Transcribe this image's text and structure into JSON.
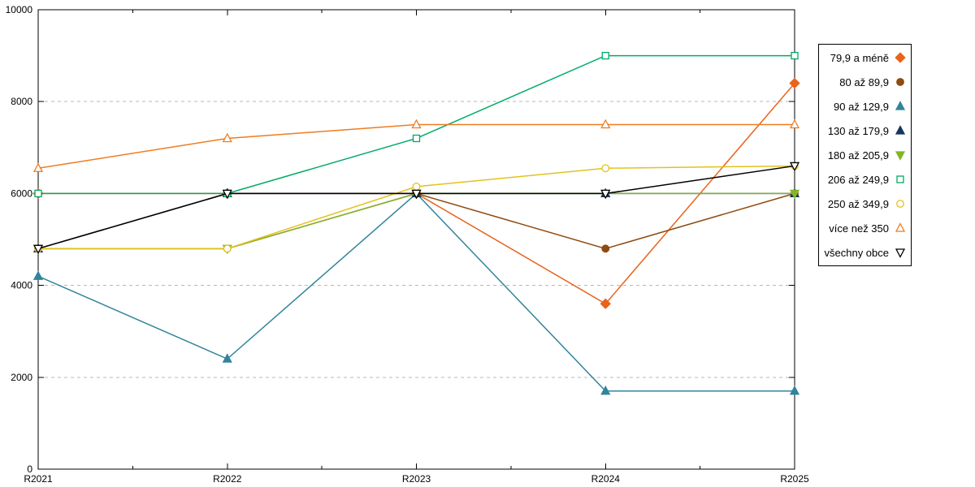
{
  "chart_data": {
    "type": "line",
    "title": "",
    "xlabel": "",
    "ylabel": "",
    "x_categories": [
      "R2021",
      "R2022",
      "R2023",
      "R2024",
      "R2025"
    ],
    "y_ticks": [
      0,
      2000,
      4000,
      6000,
      8000,
      10000
    ],
    "ylim": [
      0,
      10000
    ],
    "grid": "horizontal-dashed",
    "grid_color": "#b8b8b8",
    "border_color": "#000000",
    "legend_position": "right-outside",
    "series": [
      {
        "name": "79,9 a méně",
        "color": "#e8641b",
        "marker": "diamond",
        "filled": true,
        "values": [
          6000,
          6000,
          6000,
          3600,
          8400
        ]
      },
      {
        "name": "80 až 89,9",
        "color": "#8f4a0e",
        "marker": "circle",
        "filled": true,
        "values": [
          4800,
          4800,
          6000,
          4800,
          6000
        ]
      },
      {
        "name": "90 až 129,9",
        "color": "#31849b",
        "marker": "triangle-up",
        "filled": true,
        "values": [
          4200,
          2400,
          6000,
          1700,
          1700
        ]
      },
      {
        "name": "130 až 179,9",
        "color": "#17365d",
        "marker": "triangle-up",
        "filled": true,
        "values": [
          4800,
          6000,
          6000,
          6000,
          6000
        ]
      },
      {
        "name": "180 až 205,9",
        "color": "#84b528",
        "marker": "triangle-down",
        "filled": true,
        "values": [
          4800,
          4800,
          6000,
          6000,
          6000
        ]
      },
      {
        "name": "206 až 249,9",
        "color": "#00ab66",
        "marker": "square",
        "filled": false,
        "values": [
          6000,
          6000,
          7200,
          9000,
          9000
        ]
      },
      {
        "name": "250 až 349,9",
        "color": "#e3c21d",
        "marker": "circle",
        "filled": false,
        "values": [
          4800,
          4800,
          6150,
          6550,
          6600
        ]
      },
      {
        "name": "více než 350",
        "color": "#ef7c1f",
        "marker": "triangle-up",
        "filled": false,
        "values": [
          6550,
          7200,
          7500,
          7500,
          7500
        ]
      },
      {
        "name": "všechny obce",
        "color": "#000000",
        "marker": "triangle-down",
        "filled": false,
        "values": [
          4800,
          6000,
          6000,
          6000,
          6600
        ]
      }
    ]
  }
}
